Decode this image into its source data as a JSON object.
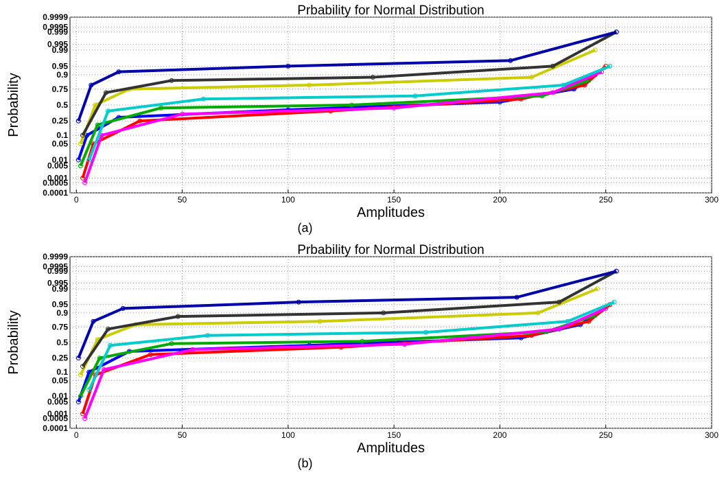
{
  "figure": {
    "panels": [
      {
        "caption": "(a)"
      },
      {
        "caption": "(b)"
      }
    ]
  },
  "chart_data": [
    {
      "type": "line",
      "title": "Prbability for Normal Distribution",
      "xlabel": "Amplitudes",
      "ylabel": "Probability",
      "xlim": [
        -3,
        300
      ],
      "x_ticks": [
        0,
        50,
        100,
        150,
        200,
        250,
        300
      ],
      "y_scale": "normal-probability",
      "y_ticks": [
        0.0001,
        0.0005,
        0.001,
        0.005,
        0.01,
        0.05,
        0.1,
        0.25,
        0.5,
        0.75,
        0.9,
        0.95,
        0.99,
        0.995,
        0.999,
        0.9995,
        0.9999
      ],
      "y_tick_labels": [
        "0.0001",
        "0.0005",
        "0.001",
        "0.005",
        "0.01",
        "0.05",
        "0.1",
        "0.25",
        "0.5",
        "0.75",
        "0.9",
        "0.95",
        "0.99",
        "0.995",
        "0.999",
        "0.9995",
        "0.9999"
      ],
      "grid": true,
      "caption": "(a)",
      "series": [
        {
          "color": "#0000ff",
          "values": [
            [
              1,
              0.01
            ],
            [
              5,
              0.1
            ],
            [
              20,
              0.3
            ],
            [
              100,
              0.42
            ],
            [
              200,
              0.55
            ],
            [
              235,
              0.75
            ],
            [
              245,
              0.9
            ]
          ]
        },
        {
          "color": "#ff0000",
          "values": [
            [
              3,
              0.001
            ],
            [
              8,
              0.05
            ],
            [
              30,
              0.25
            ],
            [
              120,
              0.4
            ],
            [
              210,
              0.6
            ],
            [
              240,
              0.8
            ],
            [
              250,
              0.95
            ]
          ]
        },
        {
          "color": "#00aa00",
          "values": [
            [
              2,
              0.005
            ],
            [
              10,
              0.2
            ],
            [
              40,
              0.45
            ],
            [
              130,
              0.5
            ],
            [
              220,
              0.65
            ],
            [
              242,
              0.85
            ]
          ]
        },
        {
          "color": "#ff00ff",
          "values": [
            [
              4,
              0.0005
            ],
            [
              12,
              0.1
            ],
            [
              50,
              0.35
            ],
            [
              150,
              0.45
            ],
            [
              225,
              0.7
            ],
            [
              248,
              0.92
            ]
          ]
        },
        {
          "color": "#00cccc",
          "values": [
            [
              6,
              0.01
            ],
            [
              15,
              0.4
            ],
            [
              60,
              0.6
            ],
            [
              160,
              0.65
            ],
            [
              230,
              0.8
            ],
            [
              252,
              0.95
            ]
          ]
        },
        {
          "color": "#cccc00",
          "values": [
            [
              2,
              0.05
            ],
            [
              9,
              0.5
            ],
            [
              25,
              0.75
            ],
            [
              110,
              0.8
            ],
            [
              215,
              0.88
            ],
            [
              245,
              0.99
            ]
          ]
        },
        {
          "color": "#333333",
          "values": [
            [
              3,
              0.1
            ],
            [
              14,
              0.7
            ],
            [
              45,
              0.85
            ],
            [
              140,
              0.88
            ],
            [
              225,
              0.95
            ],
            [
              255,
              0.999
            ]
          ]
        },
        {
          "color": "#0000aa",
          "values": [
            [
              1,
              0.25
            ],
            [
              7,
              0.8
            ],
            [
              20,
              0.92
            ],
            [
              100,
              0.95
            ],
            [
              205,
              0.97
            ],
            [
              255,
              0.999
            ]
          ]
        }
      ]
    },
    {
      "type": "line",
      "title": "Prbability for Normal Distribution",
      "xlabel": "Amplitudes",
      "ylabel": "Probability",
      "xlim": [
        -3,
        300
      ],
      "x_ticks": [
        0,
        50,
        100,
        150,
        200,
        250,
        300
      ],
      "y_scale": "normal-probability",
      "y_ticks": [
        0.0001,
        0.0005,
        0.001,
        0.005,
        0.01,
        0.05,
        0.1,
        0.25,
        0.5,
        0.75,
        0.9,
        0.95,
        0.99,
        0.995,
        0.999,
        0.9995,
        0.9999
      ],
      "y_tick_labels": [
        "0.0001",
        "0.0005",
        "0.001",
        "0.005",
        "0.01",
        "0.05",
        "0.1",
        "0.25",
        "0.5",
        "0.75",
        "0.9",
        "0.95",
        "0.99",
        "0.995",
        "0.999",
        "0.9995",
        "0.9999"
      ],
      "grid": true,
      "caption": "(b)",
      "series": [
        {
          "color": "#0000ff",
          "values": [
            [
              1,
              0.005
            ],
            [
              6,
              0.1
            ],
            [
              25,
              0.35
            ],
            [
              110,
              0.45
            ],
            [
              210,
              0.58
            ],
            [
              238,
              0.78
            ],
            [
              248,
              0.92
            ]
          ]
        },
        {
          "color": "#ff0000",
          "values": [
            [
              3,
              0.001
            ],
            [
              9,
              0.08
            ],
            [
              35,
              0.3
            ],
            [
              125,
              0.42
            ],
            [
              215,
              0.62
            ],
            [
              242,
              0.82
            ],
            [
              252,
              0.95
            ]
          ]
        },
        {
          "color": "#00aa00",
          "values": [
            [
              2,
              0.01
            ],
            [
              11,
              0.25
            ],
            [
              45,
              0.48
            ],
            [
              135,
              0.52
            ],
            [
              222,
              0.68
            ],
            [
              245,
              0.88
            ]
          ]
        },
        {
          "color": "#ff00ff",
          "values": [
            [
              4,
              0.0005
            ],
            [
              13,
              0.12
            ],
            [
              55,
              0.38
            ],
            [
              155,
              0.47
            ],
            [
              228,
              0.72
            ],
            [
              250,
              0.93
            ]
          ]
        },
        {
          "color": "#00cccc",
          "values": [
            [
              6,
              0.02
            ],
            [
              16,
              0.45
            ],
            [
              62,
              0.62
            ],
            [
              165,
              0.67
            ],
            [
              232,
              0.82
            ],
            [
              254,
              0.96
            ]
          ]
        },
        {
          "color": "#cccc00",
          "values": [
            [
              2,
              0.08
            ],
            [
              10,
              0.55
            ],
            [
              28,
              0.78
            ],
            [
              115,
              0.82
            ],
            [
              218,
              0.9
            ],
            [
              246,
              0.99
            ]
          ]
        },
        {
          "color": "#333333",
          "values": [
            [
              3,
              0.15
            ],
            [
              15,
              0.72
            ],
            [
              48,
              0.87
            ],
            [
              145,
              0.9
            ],
            [
              228,
              0.96
            ],
            [
              255,
              0.999
            ]
          ]
        },
        {
          "color": "#0000aa",
          "values": [
            [
              1,
              0.25
            ],
            [
              8,
              0.82
            ],
            [
              22,
              0.93
            ],
            [
              105,
              0.96
            ],
            [
              208,
              0.975
            ],
            [
              255,
              0.999
            ]
          ]
        }
      ]
    }
  ]
}
